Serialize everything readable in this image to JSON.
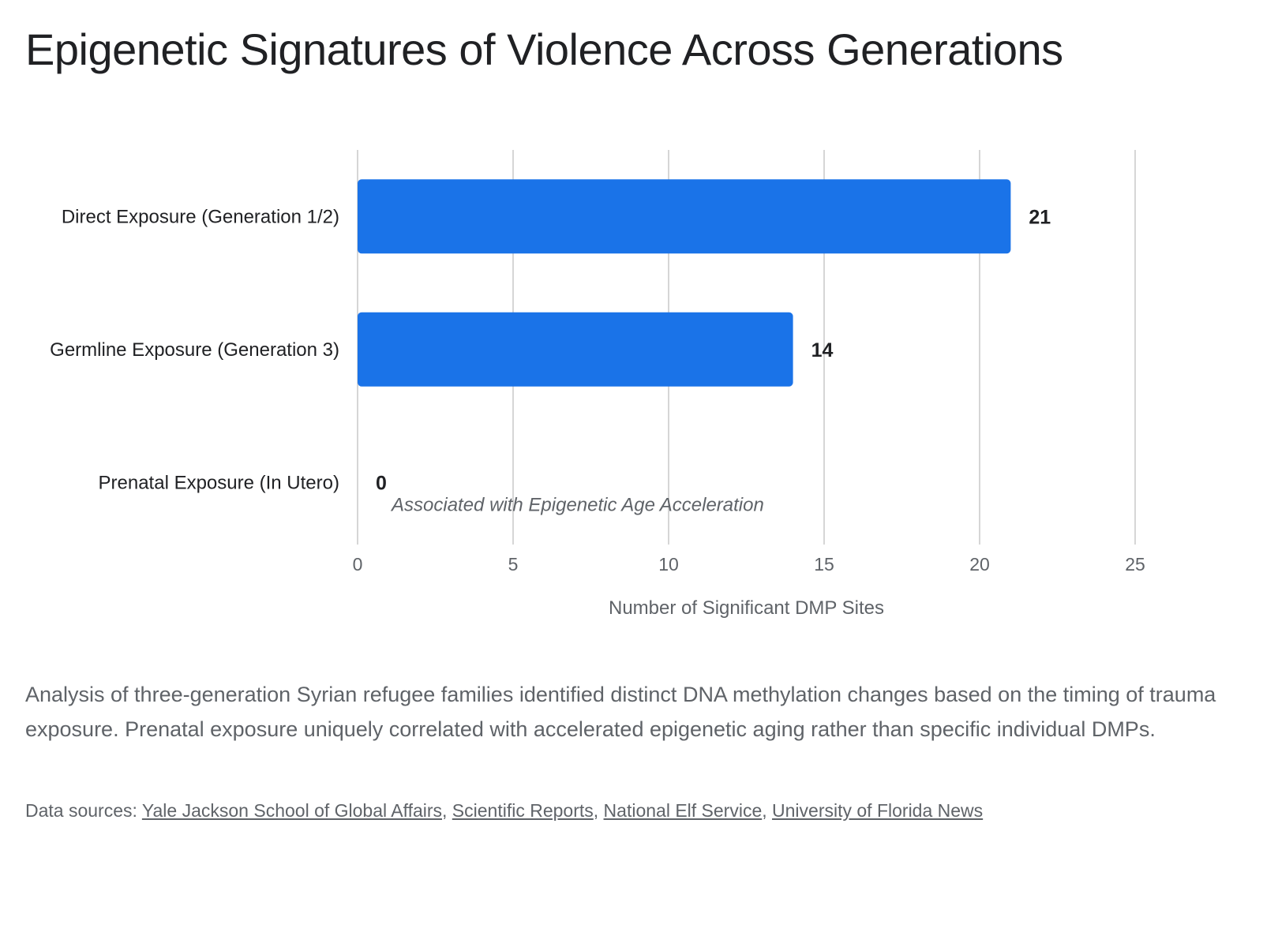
{
  "title": "Epigenetic Signatures of Violence Across Generations",
  "chart_data": {
    "type": "bar",
    "orientation": "horizontal",
    "categories": [
      "Direct Exposure (Generation 1/2)",
      "Germline Exposure (Generation 3)",
      "Prenatal Exposure (In Utero)"
    ],
    "values": [
      21,
      14,
      0
    ],
    "data_labels": [
      "21",
      "14",
      "0"
    ],
    "annotations": [
      {
        "category": "Prenatal Exposure (In Utero)",
        "text": "Associated with Epigenetic Age Acceleration"
      }
    ],
    "xlabel": "Number of Significant DMP Sites",
    "ylabel": "",
    "xlim": [
      0,
      25
    ],
    "xticks": [
      0,
      5,
      10,
      15,
      20,
      25
    ],
    "grid": true,
    "legend": "none",
    "bar_color": "#1a73e8"
  },
  "description": "Analysis of three-generation Syrian refugee families identified distinct DNA methylation changes based on the timing of trauma exposure. Prenatal exposure uniquely correlated with accelerated epigenetic aging rather than specific individual DMPs.",
  "sources": {
    "prefix": "Data sources: ",
    "links": [
      "Yale Jackson School of Global Affairs",
      "Scientific Reports",
      "National Elf Service",
      "University of Florida News"
    ],
    "separator": ", "
  }
}
